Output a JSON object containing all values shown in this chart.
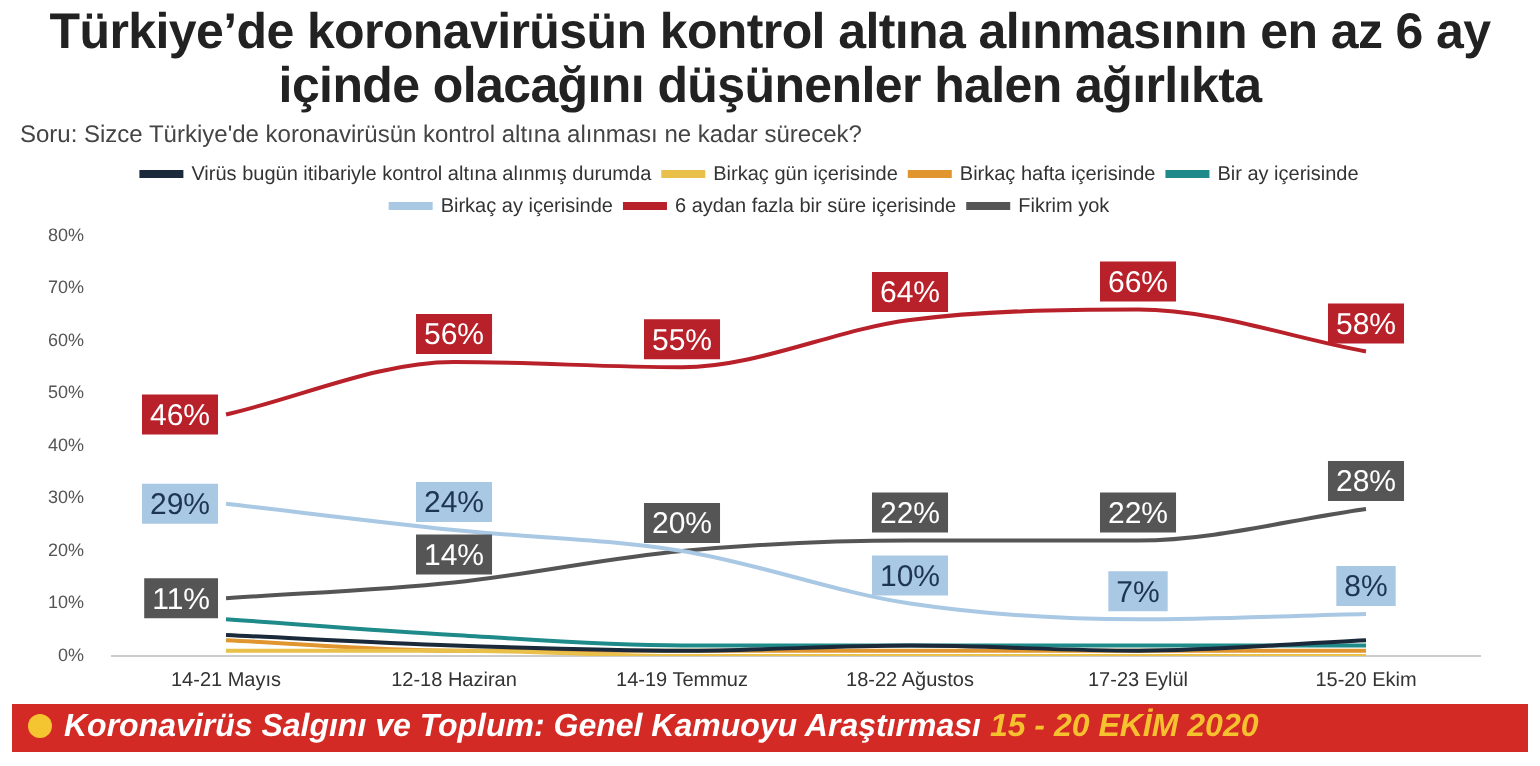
{
  "chart_data": {
    "type": "line",
    "title": "Türkiye’de koronavirüsün kontrol altına alınmasının en az 6 ay içinde olacağını düşünenler halen ağırlıkta",
    "subtitle": "Soru: Sizce Türkiye'de koronavirüsün kontrol altına alınması ne kadar sürecek?",
    "categories": [
      "14-21 Mayıs",
      "12-18 Haziran",
      "14-19 Temmuz",
      "18-22 Ağustos",
      "17-23 Eylül",
      "15-20 Ekim"
    ],
    "series": [
      {
        "name": "Virüs bugün itibariyle kontrol altına alınmış durumda",
        "color": "#1b2a3a",
        "values": [
          4,
          2,
          1,
          2,
          1,
          3
        ]
      },
      {
        "name": "Birkaç gün içerisinde",
        "color": "#e8c04a",
        "values": [
          1,
          1,
          0,
          0,
          0,
          0
        ]
      },
      {
        "name": "Birkaç hafta içerisinde",
        "color": "#e0952e",
        "values": [
          3,
          1,
          1,
          1,
          1,
          1
        ]
      },
      {
        "name": "Bir ay içerisinde",
        "color": "#1e8a8a",
        "values": [
          7,
          4,
          2,
          2,
          2,
          2
        ]
      },
      {
        "name": "Birkaç ay içerisinde",
        "color": "#a9c8e4",
        "values": [
          29,
          24,
          20,
          10,
          7,
          8
        ],
        "value_labels": [
          "29%",
          "24%",
          null,
          "10%",
          "7%",
          "8%"
        ]
      },
      {
        "name": "6 aydan fazla bir süre içerisinde",
        "color": "#b8202a",
        "values": [
          46,
          56,
          55,
          64,
          66,
          58
        ],
        "value_labels": [
          "46%",
          "56%",
          "55%",
          "64%",
          "66%",
          "58%"
        ]
      },
      {
        "name": "Fikrim yok",
        "color": "#555555",
        "values": [
          11,
          14,
          20,
          22,
          22,
          28
        ],
        "value_labels": [
          "11%",
          "14%",
          "20%",
          "22%",
          "22%",
          "28%"
        ]
      }
    ],
    "ylim": [
      0,
      80
    ],
    "yticks": [
      {
        "value": 0,
        "label": "0%"
      },
      {
        "value": 10,
        "label": "10%"
      },
      {
        "value": 20,
        "label": "20%"
      },
      {
        "value": 30,
        "label": "30%"
      },
      {
        "value": 40,
        "label": "40%"
      },
      {
        "value": 50,
        "label": "50%"
      },
      {
        "value": 60,
        "label": "60%"
      },
      {
        "value": 70,
        "label": "70%"
      },
      {
        "value": 80,
        "label": "80%"
      }
    ],
    "grid": false,
    "legend": "top",
    "marker": "none",
    "line_style": "solid",
    "annotations": [
      "Koronavirüs Salgını ve Toplum: Genel Kamuoyu Araştırması",
      "15 - 20 EKİM 2020"
    ]
  }
}
